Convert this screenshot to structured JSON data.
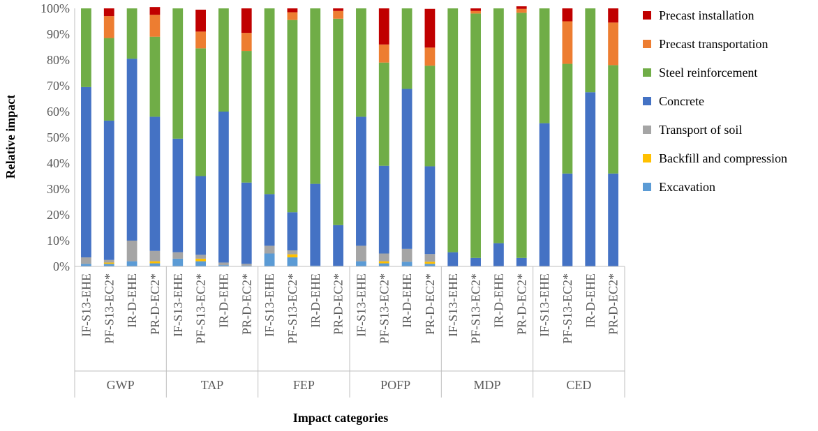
{
  "chart_data": {
    "type": "bar",
    "stacked": true,
    "normalized": true,
    "ylabel": "Relative impact",
    "xlabel": "Impact categories",
    "ylim": [
      0,
      100
    ],
    "y_ticks": [
      "0%",
      "10%",
      "20%",
      "30%",
      "40%",
      "50%",
      "60%",
      "70%",
      "80%",
      "90%",
      "100%"
    ],
    "grid": false,
    "legend_position": "right",
    "groups": [
      {
        "name": "GWP",
        "categories": [
          "IF-S13-EHE",
          "PF-S13-EC2*",
          "IR-D-EHE",
          "PR-D-EC2*"
        ]
      },
      {
        "name": "TAP",
        "categories": [
          "IF-S13-EHE",
          "PF-S13-EC2*",
          "IR-D-EHE",
          "PR-D-EC2*"
        ]
      },
      {
        "name": "FEP",
        "categories": [
          "IF-S13-EHE",
          "PF-S13-EC2*",
          "IR-D-EHE",
          "PR-D-EC2*"
        ]
      },
      {
        "name": "POFP",
        "categories": [
          "IF-S13-EHE",
          "PF-S13-EC2*",
          "IR-D-EHE",
          "PR-D-EC2*"
        ]
      },
      {
        "name": "MDP",
        "categories": [
          "IF-S13-EHE",
          "PF-S13-EC2*",
          "IR-D-EHE",
          "PR-D-EC2*"
        ]
      },
      {
        "name": "CED",
        "categories": [
          "IF-S13-EHE",
          "PF-S13-EC2*",
          "IR-D-EHE",
          "PR-D-EC2*"
        ]
      }
    ],
    "series": [
      {
        "name": "Excavation",
        "color": "#5B9BD5",
        "values": [
          1,
          1,
          2,
          1.2,
          3,
          2,
          0.5,
          0.3,
          5,
          3.5,
          0.3,
          0.2,
          2,
          1.2,
          1.8,
          1,
          0,
          0,
          0,
          0,
          0,
          0,
          0,
          0
        ]
      },
      {
        "name": "Backfill and compression",
        "color": "#FFC000",
        "values": [
          0,
          0.5,
          0,
          0.8,
          0,
          1,
          0,
          0,
          0,
          1.2,
          0,
          0,
          0,
          0.8,
          0,
          0.8,
          0,
          0,
          0,
          0,
          0,
          0,
          0,
          0
        ]
      },
      {
        "name": "Transport of soil",
        "color": "#A5A5A5",
        "values": [
          2.5,
          1,
          8,
          4,
          2.5,
          1.5,
          1,
          0.7,
          3,
          1.5,
          0,
          0,
          6,
          3,
          5,
          3,
          0,
          0,
          0,
          0,
          0,
          0,
          0,
          0
        ]
      },
      {
        "name": "Concrete",
        "color": "#4472C4",
        "values": [
          66,
          54,
          70.5,
          52,
          44,
          30.5,
          58.5,
          31.5,
          20,
          14.8,
          31.7,
          15.8,
          50,
          34,
          62,
          34,
          5.5,
          3.3,
          9,
          3.3,
          55.5,
          36,
          67.5,
          36
        ]
      },
      {
        "name": "Steel reinforcement",
        "color": "#70AD47",
        "values": [
          30.5,
          32,
          19.5,
          31,
          50.5,
          49.5,
          40,
          51,
          72,
          74.5,
          68,
          80,
          42,
          40,
          31.2,
          39,
          94.5,
          94.7,
          91,
          95,
          44.5,
          42.5,
          32.5,
          42
        ]
      },
      {
        "name": "Precast transportation",
        "color": "#ED7D31",
        "values": [
          0,
          8.5,
          0,
          8.5,
          0,
          6.5,
          0,
          7,
          0,
          3,
          0,
          3,
          0,
          7,
          0,
          7,
          0,
          1,
          0,
          1.5,
          0,
          16.5,
          0,
          16.5
        ]
      },
      {
        "name": "Precast installation",
        "color": "#C00000",
        "values": [
          0,
          3,
          0,
          3,
          0,
          8.5,
          0,
          9.5,
          0,
          1.5,
          0,
          1,
          0,
          14,
          0,
          15,
          0,
          1,
          0,
          1,
          0,
          5,
          0,
          5.5
        ]
      }
    ],
    "legend_order": [
      "Precast installation",
      "Precast transportation",
      "Steel reinforcement",
      "Concrete",
      "Transport of soil",
      "Backfill and compression",
      "Excavation"
    ]
  }
}
